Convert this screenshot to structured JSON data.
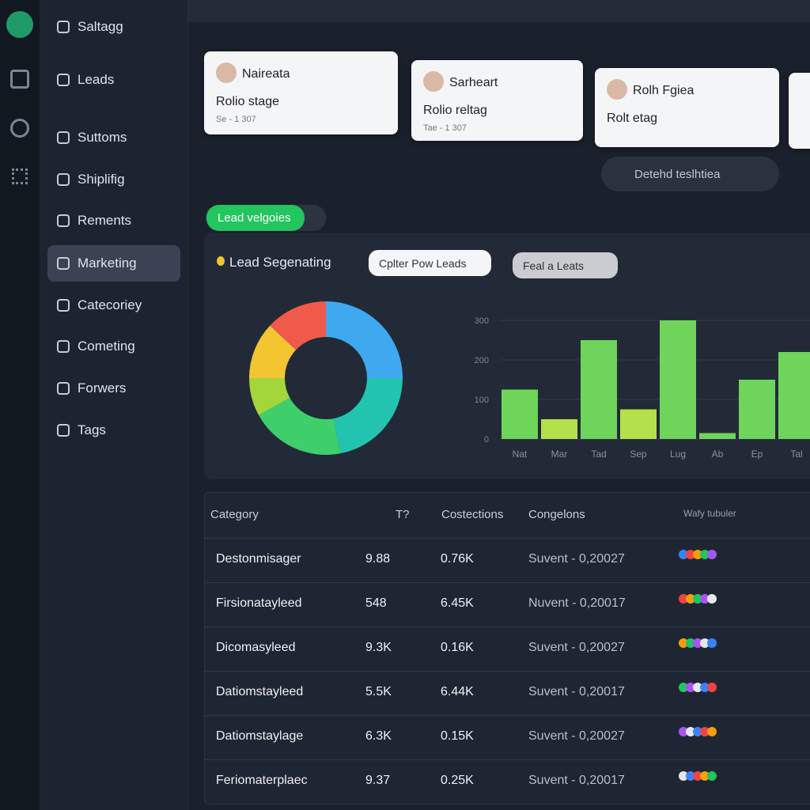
{
  "sidebar": {
    "items": [
      "Saltagg",
      "Leads",
      "Suttoms",
      "Shiplifig",
      "Rements",
      "Marketing",
      "Catecoriey",
      "Cometing",
      "Forwers",
      "Tags"
    ],
    "active": 5
  },
  "cards": [
    {
      "name": "Naireata",
      "stage": "Rolio stage",
      "date": "Se - 1 307"
    },
    {
      "name": "Sarheart",
      "stage": "Rolio reltag",
      "date": "Tae - 1 307"
    },
    {
      "name": "Rolh Fgiea",
      "stage": "Rolt etag"
    }
  ],
  "status_pill": "Detehd teslhtiea",
  "filter_chip": "Lead velgoies",
  "panel": {
    "title": "Lead Segenating",
    "buttons": [
      "Cplter Pow Leads",
      "Feal a Leats"
    ]
  },
  "chart_data": [
    {
      "type": "pie",
      "values": [
        25,
        22,
        20,
        8,
        12,
        13
      ],
      "colors": [
        "#3fa9f0",
        "#22c4b0",
        "#3fcf6a",
        "#a3d63a",
        "#f2c531",
        "#f05a4a"
      ]
    },
    {
      "type": "bar",
      "categories": [
        "Nat",
        "Mar",
        "Tad",
        "Sep",
        "Lug",
        "Ab",
        "Ep",
        "Tal"
      ],
      "values": [
        125,
        50,
        250,
        75,
        300,
        15,
        150,
        220
      ],
      "colors": [
        "#6fd45a",
        "#b4e04a",
        "#6fd45a",
        "#b4e04a",
        "#6fd45a",
        "#6fd45a",
        "#6fd45a",
        "#6fd45a"
      ],
      "ylim": [
        0,
        300
      ],
      "yticks": [
        0,
        100,
        200,
        300
      ],
      "grid": true
    }
  ],
  "table": {
    "header": [
      "Category",
      "T?",
      "Costections",
      "Congelons",
      "Wafy tubuler"
    ],
    "rows": [
      [
        "Destonmisager",
        "9.88",
        "0.76K",
        "Suvent - 0,20027"
      ],
      [
        "Firsionatayleed",
        "548",
        "6.45K",
        "Nuvent - 0,20017"
      ],
      [
        "Dicomasyleed",
        "9.3K",
        "0.16K",
        "Suvent - 0,20027"
      ],
      [
        "Datiomstayleed",
        "5.5K",
        "6.44K",
        "Suvent - 0,20017"
      ],
      [
        "Datiomstaylage",
        "6.3K",
        "0.15K",
        "Suvent - 0,20027"
      ],
      [
        "Feriomaterplaec",
        "9.37",
        "0.25K",
        "Suvent - 0,20017"
      ]
    ]
  }
}
